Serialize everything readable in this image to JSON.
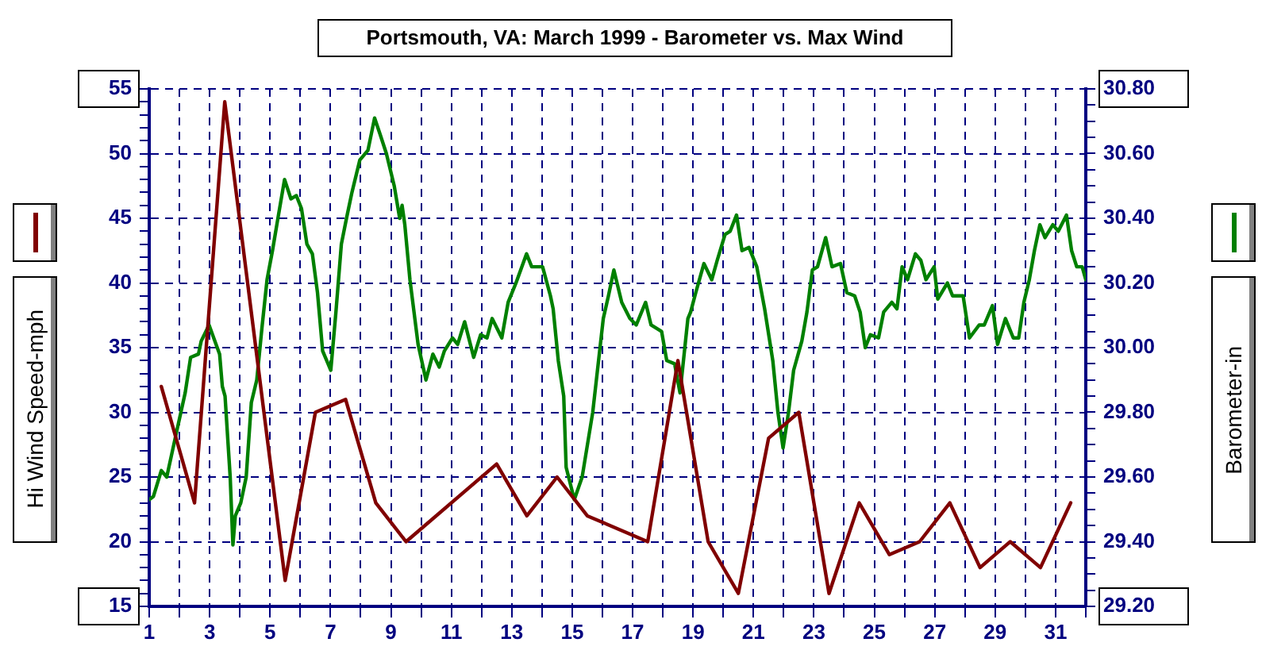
{
  "chart_data": {
    "type": "line",
    "title": "Portsmouth, VA: March 1999 - Barometer vs. Max Wind",
    "ylabel": "Hi Wind Speed-mph",
    "y2label": "Barometer-in",
    "series": [
      {
        "color": "#800000",
        "x": [
          1.4,
          2.5,
          3.5,
          5.5,
          6.5,
          7.5,
          8.5,
          9.5,
          12.5,
          13.5,
          14.5,
          15.5,
          17.5,
          18.5,
          19.5,
          20.5,
          21.5,
          22.5,
          23.5,
          24.5,
          25.5,
          26.5,
          27.5,
          28.5,
          29.5,
          30.5,
          31.5
        ],
        "values": [
          32,
          23,
          54,
          17,
          30,
          31,
          23,
          20,
          26,
          22,
          25,
          22,
          20,
          34,
          20,
          16,
          28,
          30,
          16,
          23,
          19,
          20,
          23,
          18,
          20,
          18,
          23
        ]
      },
      {
        "color": "#008000",
        "axis": "y2",
        "x": [
          1.0,
          1.14,
          1.4,
          1.58,
          1.93,
          2.19,
          2.37,
          2.63,
          2.72,
          2.98,
          3.33,
          3.42,
          3.51,
          3.68,
          3.77,
          3.85,
          4.03,
          4.21,
          4.38,
          4.56,
          4.73,
          4.9,
          5.08,
          5.26,
          5.48,
          5.69,
          5.87,
          6.04,
          6.22,
          6.4,
          6.57,
          6.74,
          6.92,
          7.01,
          7.18,
          7.36,
          7.53,
          7.71,
          7.97,
          8.24,
          8.46,
          8.64,
          8.85,
          9.11,
          9.29,
          9.37,
          9.46,
          9.63,
          9.9,
          10.16,
          10.39,
          10.6,
          10.77,
          11.04,
          11.21,
          11.44,
          11.74,
          11.97,
          12.18,
          12.35,
          12.67,
          12.88,
          13.14,
          13.49,
          13.66,
          14.02,
          14.28,
          14.37,
          14.54,
          14.72,
          14.8,
          15.07,
          15.33,
          15.68,
          16.03,
          16.2,
          16.38,
          16.64,
          16.91,
          17.12,
          17.43,
          17.61,
          17.96,
          18.13,
          18.39,
          18.57,
          18.83,
          18.92,
          19.09,
          19.36,
          19.62,
          19.8,
          20.06,
          20.23,
          20.44,
          20.62,
          20.85,
          21.11,
          21.37,
          21.64,
          21.81,
          21.98,
          22.16,
          22.33,
          22.6,
          22.77,
          22.95,
          23.12,
          23.39,
          23.6,
          23.88,
          24.09,
          24.35,
          24.53,
          24.7,
          24.87,
          25.14,
          25.31,
          25.58,
          25.75,
          25.92,
          26.1,
          26.36,
          26.54,
          26.71,
          26.98,
          27.1,
          27.42,
          27.59,
          27.94,
          28.15,
          28.47,
          28.64,
          28.91,
          29.08,
          29.34,
          29.6,
          29.78,
          29.95,
          30.13,
          30.3,
          30.48,
          30.65,
          30.91,
          31.09,
          31.36,
          31.53,
          31.7,
          31.88,
          32.0
        ],
        "values": [
          29.53,
          29.54,
          29.62,
          29.6,
          29.75,
          29.86,
          29.97,
          29.98,
          30.02,
          30.07,
          29.98,
          29.88,
          29.85,
          29.6,
          29.39,
          29.48,
          29.52,
          29.6,
          29.83,
          29.9,
          30.06,
          30.21,
          30.3,
          30.4,
          30.52,
          30.46,
          30.47,
          30.43,
          30.32,
          30.29,
          30.17,
          29.99,
          29.95,
          29.93,
          30.11,
          30.32,
          30.4,
          30.48,
          30.58,
          30.61,
          30.71,
          30.66,
          30.6,
          30.5,
          30.4,
          30.44,
          30.38,
          30.21,
          30.01,
          29.9,
          29.98,
          29.94,
          29.99,
          30.03,
          30.01,
          30.08,
          29.97,
          30.04,
          30.03,
          30.09,
          30.03,
          30.14,
          30.2,
          30.29,
          30.25,
          30.25,
          30.16,
          30.12,
          29.96,
          29.85,
          29.63,
          29.53,
          29.6,
          29.8,
          30.09,
          30.16,
          30.24,
          30.14,
          30.09,
          30.07,
          30.14,
          30.07,
          30.05,
          29.96,
          29.95,
          29.86,
          30.09,
          30.11,
          30.17,
          30.26,
          30.21,
          30.27,
          30.35,
          30.36,
          30.41,
          30.3,
          30.31,
          30.25,
          30.12,
          29.96,
          29.8,
          29.69,
          29.8,
          29.93,
          30.02,
          30.11,
          30.24,
          30.25,
          30.34,
          30.25,
          30.26,
          30.17,
          30.16,
          30.11,
          30.0,
          30.04,
          30.03,
          30.11,
          30.14,
          30.12,
          30.25,
          30.21,
          30.29,
          30.27,
          30.21,
          30.25,
          30.15,
          30.2,
          30.16,
          30.16,
          30.03,
          30.07,
          30.07,
          30.13,
          30.01,
          30.09,
          30.03,
          30.03,
          30.14,
          30.21,
          30.3,
          30.38,
          30.34,
          30.38,
          30.36,
          30.41,
          30.3,
          30.25,
          30.25,
          30.21
        ]
      }
    ],
    "xlim": [
      1,
      32
    ],
    "xticks": [
      1,
      {
        "value": 2,
        "label": null
      },
      3,
      {
        "value": 4,
        "label": null
      },
      5,
      {
        "value": 6,
        "label": null
      },
      7,
      {
        "value": 8,
        "label": null
      },
      9,
      {
        "value": 10,
        "label": null
      },
      11,
      {
        "value": 12,
        "label": null
      },
      13,
      {
        "value": 14,
        "label": null
      },
      15,
      {
        "value": 16,
        "label": null
      },
      17,
      {
        "value": 18,
        "label": null
      },
      19,
      {
        "value": 20,
        "label": null
      },
      21,
      {
        "value": 22,
        "label": null
      },
      23,
      {
        "value": 24,
        "label": null
      },
      25,
      {
        "value": 26,
        "label": null
      },
      27,
      {
        "value": 28,
        "label": null
      },
      29,
      {
        "value": 30,
        "label": null
      },
      31,
      {
        "value": 32,
        "label": null
      }
    ],
    "ylim": [
      15,
      55
    ],
    "yticks": [
      15,
      {
        "value": 16,
        "label": null
      },
      {
        "value": 17,
        "label": null
      },
      {
        "value": 18,
        "label": null
      },
      {
        "value": 19,
        "label": null
      },
      20,
      {
        "value": 21,
        "label": null
      },
      {
        "value": 22,
        "label": null
      },
      {
        "value": 23,
        "label": null
      },
      {
        "value": 24,
        "label": null
      },
      25,
      {
        "value": 26,
        "label": null
      },
      {
        "value": 27,
        "label": null
      },
      {
        "value": 28,
        "label": null
      },
      {
        "value": 29,
        "label": null
      },
      30,
      {
        "value": 31,
        "label": null
      },
      {
        "value": 32,
        "label": null
      },
      {
        "value": 33,
        "label": null
      },
      {
        "value": 34,
        "label": null
      },
      35,
      {
        "value": 36,
        "label": null
      },
      {
        "value": 37,
        "label": null
      },
      {
        "value": 38,
        "label": null
      },
      {
        "value": 39,
        "label": null
      },
      40,
      {
        "value": 41,
        "label": null
      },
      {
        "value": 42,
        "label": null
      },
      {
        "value": 43,
        "label": null
      },
      {
        "value": 44,
        "label": null
      },
      45,
      {
        "value": 46,
        "label": null
      },
      {
        "value": 47,
        "label": null
      },
      {
        "value": 48,
        "label": null
      },
      {
        "value": 49,
        "label": null
      },
      50,
      {
        "value": 51,
        "label": null
      },
      {
        "value": 52,
        "label": null
      },
      {
        "value": 53,
        "label": null
      },
      {
        "value": 54,
        "label": null
      },
      55
    ],
    "y2lim": [
      29.2,
      30.8
    ],
    "y2ticks": [
      {
        "value": 29.2,
        "label": "29.20"
      },
      {
        "value": 29.25,
        "label": null
      },
      {
        "value": 29.3,
        "label": null
      },
      {
        "value": 29.35,
        "label": null
      },
      {
        "value": 29.4,
        "label": "29.40"
      },
      {
        "value": 29.45,
        "label": null
      },
      {
        "value": 29.5,
        "label": null
      },
      {
        "value": 29.55,
        "label": null
      },
      {
        "value": 29.6,
        "label": "29.60"
      },
      {
        "value": 29.65,
        "label": null
      },
      {
        "value": 29.7,
        "label": null
      },
      {
        "value": 29.75,
        "label": null
      },
      {
        "value": 29.8,
        "label": "29.80"
      },
      {
        "value": 29.85,
        "label": null
      },
      {
        "value": 29.9,
        "label": null
      },
      {
        "value": 29.95,
        "label": null
      },
      {
        "value": 30.0,
        "label": "30.00"
      },
      {
        "value": 30.05,
        "label": null
      },
      {
        "value": 30.1,
        "label": null
      },
      {
        "value": 30.15,
        "label": null
      },
      {
        "value": 30.2,
        "label": "30.20"
      },
      {
        "value": 30.25,
        "label": null
      },
      {
        "value": 30.3,
        "label": null
      },
      {
        "value": 30.35,
        "label": null
      },
      {
        "value": 30.4,
        "label": "30.40"
      },
      {
        "value": 30.45,
        "label": null
      },
      {
        "value": 30.5,
        "label": null
      },
      {
        "value": 30.55,
        "label": null
      },
      {
        "value": 30.6,
        "label": "30.60"
      },
      {
        "value": 30.65,
        "label": null
      },
      {
        "value": 30.7,
        "label": null
      },
      {
        "value": 30.75,
        "label": null
      },
      {
        "value": 30.8,
        "label": "30.80"
      }
    ],
    "grid": true
  }
}
